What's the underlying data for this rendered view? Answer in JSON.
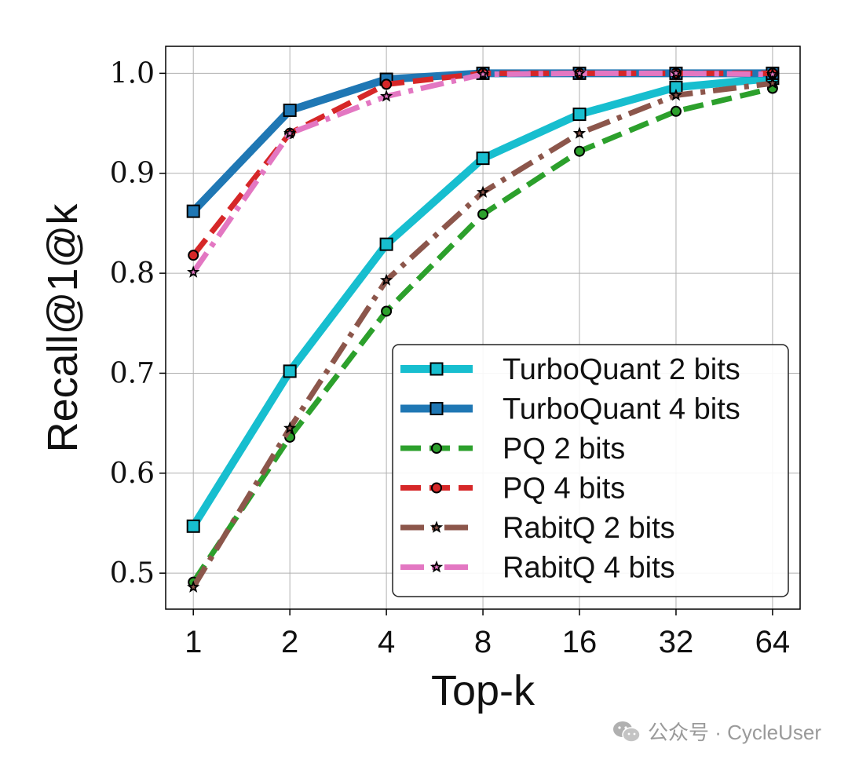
{
  "chart_data": {
    "type": "line",
    "xlabel": "Top-k",
    "ylabel": "Recall@1@k",
    "x": [
      1,
      2,
      4,
      8,
      16,
      32,
      64
    ],
    "x_scale": "log2",
    "xlim": [
      0.82,
      78
    ],
    "ylim": [
      0.464,
      1.027
    ],
    "yticks": [
      0.5,
      0.6,
      0.7,
      0.8,
      0.9,
      1.0
    ],
    "ytick_labels": [
      "0.5",
      "0.6",
      "0.7",
      "0.8",
      "0.9",
      "1.0"
    ],
    "xtick_labels": [
      "1",
      "2",
      "4",
      "8",
      "16",
      "32",
      "64"
    ],
    "grid": true,
    "legend_position": "bottom-right",
    "series": [
      {
        "name": "TurboQuant 2 bits",
        "color": "#17becf",
        "style": "solid",
        "width": 10,
        "marker": "square",
        "values": [
          0.547,
          0.702,
          0.829,
          0.915,
          0.959,
          0.986,
          0.995
        ]
      },
      {
        "name": "TurboQuant 4 bits",
        "color": "#1f77b4",
        "style": "solid",
        "width": 10,
        "marker": "square",
        "values": [
          0.862,
          0.963,
          0.994,
          1.0,
          1.0,
          1.0,
          1.0
        ]
      },
      {
        "name": "PQ 2 bits",
        "color": "#2ca02c",
        "style": "dashed",
        "width": 7,
        "marker": "circle",
        "values": [
          0.491,
          0.636,
          0.762,
          0.859,
          0.922,
          0.962,
          0.985
        ]
      },
      {
        "name": "PQ 4 bits",
        "color": "#d62728",
        "style": "dashed",
        "width": 7,
        "marker": "circle",
        "values": [
          0.818,
          0.94,
          0.989,
          1.0,
          1.0,
          1.0,
          1.0
        ]
      },
      {
        "name": "RabitQ 2 bits",
        "color": "#8c564b",
        "style": "dashdot",
        "width": 7,
        "marker": "star",
        "values": [
          0.486,
          0.645,
          0.793,
          0.881,
          0.94,
          0.978,
          0.99
        ]
      },
      {
        "name": "RabitQ 4 bits",
        "color": "#e377c2",
        "style": "dashdot",
        "width": 7,
        "marker": "star",
        "values": [
          0.801,
          0.94,
          0.977,
          0.999,
          1.0,
          1.0,
          0.999
        ]
      }
    ]
  },
  "watermark": {
    "text": "公众号 · CycleUser",
    "icon": "wechat-icon"
  }
}
